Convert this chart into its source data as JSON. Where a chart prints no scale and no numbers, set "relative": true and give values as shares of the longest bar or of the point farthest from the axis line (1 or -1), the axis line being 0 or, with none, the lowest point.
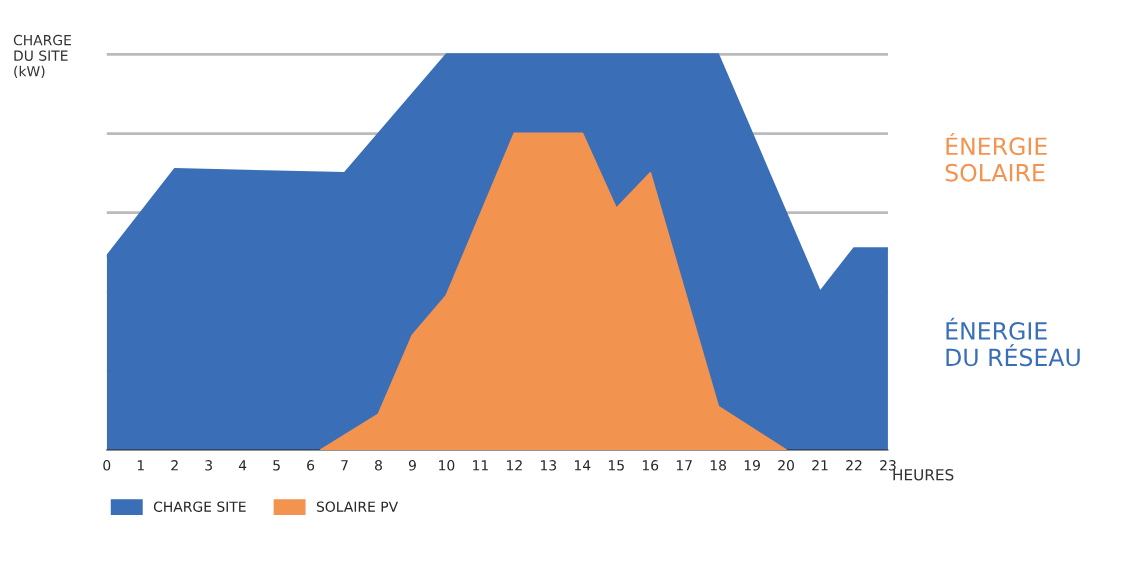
{
  "chart_data": {
    "type": "area",
    "relative": true,
    "ylabel": "CHARGE\nDU SITE\n(kW)",
    "xlabel": "HEURES",
    "xlim": [
      0,
      23
    ],
    "xticks": [
      0,
      1,
      2,
      3,
      4,
      5,
      6,
      7,
      8,
      9,
      10,
      11,
      12,
      13,
      14,
      15,
      16,
      17,
      18,
      19,
      20,
      21,
      22,
      23
    ],
    "grid": "y",
    "legend": "bottom",
    "series": [
      {
        "name": "CHARGE SITE",
        "color": "#3a6fb8",
        "x": [
          0,
          2,
          7,
          10,
          18,
          21,
          22,
          23
        ],
        "values": [
          0.49,
          0.71,
          0.7,
          1,
          1,
          0.4,
          0.51,
          0.51
        ]
      },
      {
        "name": "SOLAIRE PV",
        "color": "#f39350",
        "x": [
          6.3,
          8,
          9,
          10,
          12,
          14,
          15,
          16,
          18,
          20
        ],
        "values": [
          0,
          0.09,
          0.29,
          0.39,
          0.8,
          0.8,
          0.61,
          0.7,
          0.11,
          0
        ]
      }
    ],
    "annotations": [
      "ÉNERGIE\nSOLAIRE",
      "ÉNERGIE\nDU RÉSEAU"
    ]
  }
}
